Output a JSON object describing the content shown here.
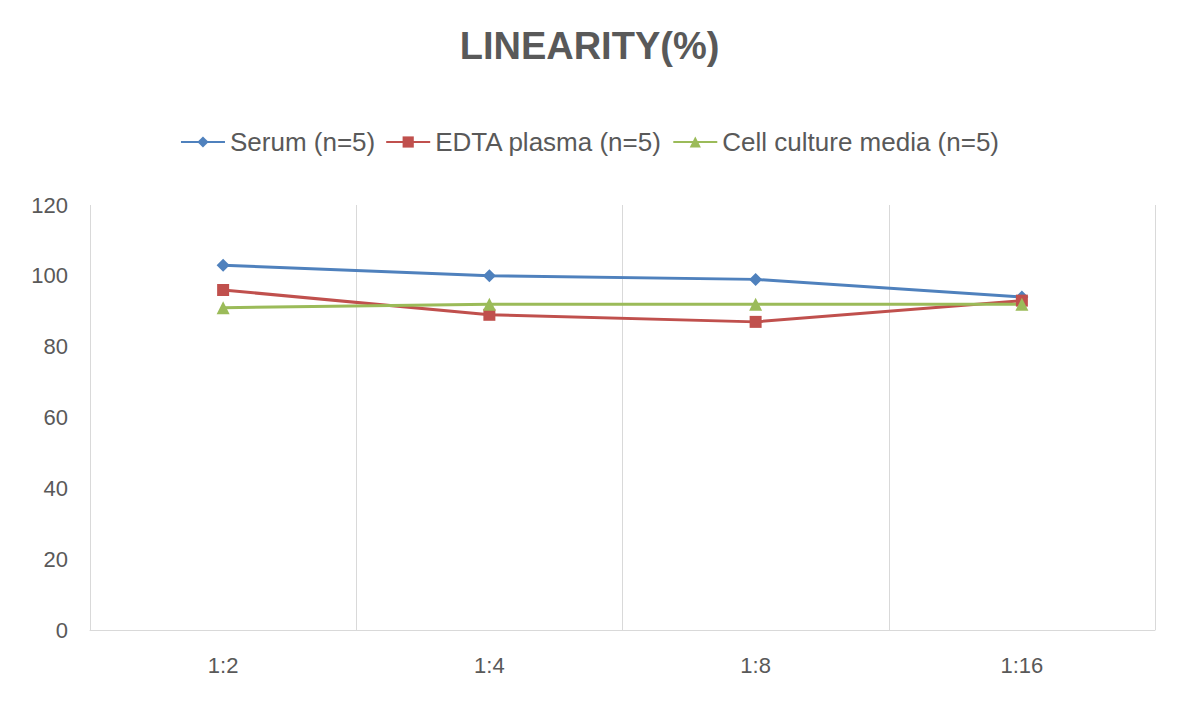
{
  "chart_data": {
    "type": "line",
    "title": "LINEARITY(%)",
    "categories": [
      "1:2",
      "1:4",
      "1:8",
      "1:16"
    ],
    "series": [
      {
        "name": "Serum (n=5)",
        "color": "#4F81BD",
        "marker": "diamond",
        "values": [
          103,
          100,
          99,
          94
        ]
      },
      {
        "name": "EDTA plasma (n=5)",
        "color": "#C0504D",
        "marker": "rect",
        "values": [
          96,
          89,
          87,
          93
        ]
      },
      {
        "name": "Cell culture media (n=5)",
        "color": "#9BBB59",
        "marker": "triangle",
        "values": [
          91,
          92,
          92,
          92
        ]
      }
    ],
    "ylim": [
      0,
      120
    ],
    "yticks": [
      0,
      20,
      40,
      60,
      80,
      100,
      120
    ],
    "grid": true,
    "legend": "top"
  }
}
